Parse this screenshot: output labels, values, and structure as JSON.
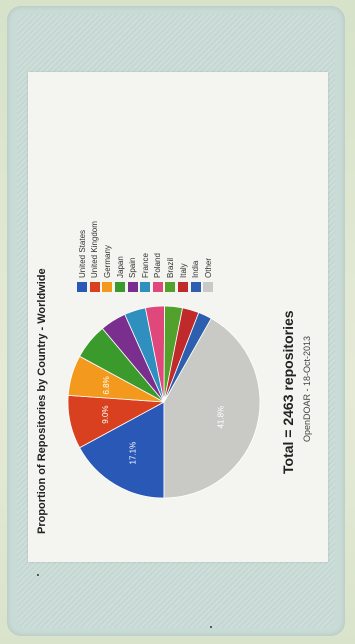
{
  "chart_data": {
    "type": "pie",
    "title": "Proportion of Repositories by Country - Worldwide",
    "slices": [
      {
        "label": "United States",
        "value": 17.1,
        "color": "#2a58b7",
        "data_label": "17.1%"
      },
      {
        "label": "United Kingdom",
        "value": 9.0,
        "color": "#d8401f",
        "data_label": "9.0%"
      },
      {
        "label": "Germany",
        "value": 6.8,
        "color": "#f39a1e",
        "data_label": "6.8%"
      },
      {
        "label": "Japan",
        "value": 6.0,
        "color": "#3b9a2c",
        "data_label": ""
      },
      {
        "label": "Spain",
        "value": 4.4,
        "color": "#7a2f8e",
        "data_label": ""
      },
      {
        "label": "France",
        "value": 3.6,
        "color": "#2f8fbf",
        "data_label": ""
      },
      {
        "label": "Poland",
        "value": 3.2,
        "color": "#e0477a",
        "data_label": ""
      },
      {
        "label": "Brazil",
        "value": 3.0,
        "color": "#52a12d",
        "data_label": ""
      },
      {
        "label": "Italy",
        "value": 2.8,
        "color": "#c12a2a",
        "data_label": ""
      },
      {
        "label": "India",
        "value": 2.3,
        "color": "#2e5fae",
        "data_label": ""
      },
      {
        "label": "Other",
        "value": 41.8,
        "color": "#c9c9c6",
        "data_label": "41.8%"
      }
    ],
    "legend_position": "right",
    "total_label": "Total = 2463 repositories",
    "source": "OpenDOAR - 18-Oct-2013"
  }
}
